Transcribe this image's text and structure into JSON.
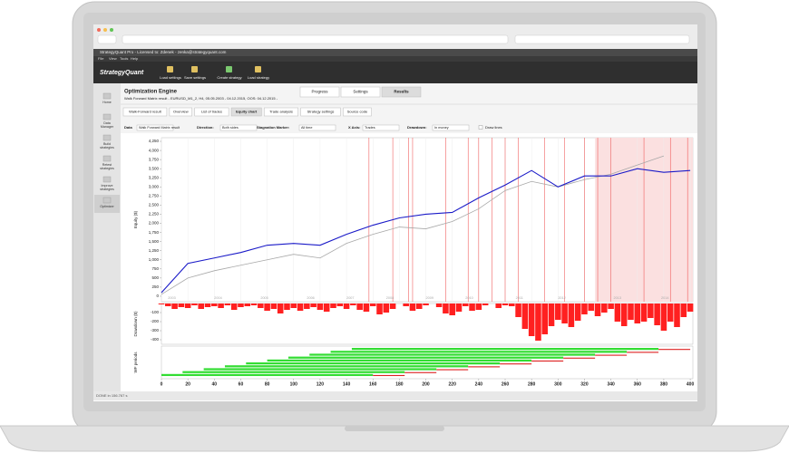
{
  "app": {
    "title": "StrategyQuant Pro - Licensed to: Zdenek - zenka@strategyquant.com",
    "logo": "StrategyQuant",
    "menu": [
      "File",
      "View",
      "Tools",
      "Help"
    ],
    "toolbar": [
      "Load settings",
      "Save settings",
      "Create strategy",
      "Load strategy"
    ],
    "sidebar": [
      "Home",
      "Data Manager",
      "Build strategies",
      "Retest strategies",
      "Improve strategies",
      "Optimizer"
    ],
    "active_sidebar": 5
  },
  "page": {
    "title": "Optimization Engine",
    "subtitle": "Walk Forward Matrix result - EURUSD_M1_2, H4, 05.05.2003 - 04.12.2015, OOS: 04.12.2015 -",
    "tabs": [
      "Progress",
      "Settings",
      "Results"
    ],
    "active_tab": 2,
    "subtabs": [
      "Walk-Forward result",
      "Overview",
      "List of trades",
      "Equity chart",
      "Trade analysis",
      "Strategy settings",
      "Source code"
    ],
    "active_subtab": 3,
    "controls": [
      {
        "label": "Data",
        "value": "Walk Forward Matrix result"
      },
      {
        "label": "Direction:",
        "value": "Both sides"
      },
      {
        "label": "Stagnation Marker:",
        "value": "All time"
      },
      {
        "label": "X Axis:",
        "value": "Trades"
      },
      {
        "label": "Drawdown:",
        "value": "In money"
      }
    ],
    "checkbox": "Draw lines",
    "status": "DONE in 156.767 s"
  },
  "chart_data": [
    {
      "type": "line",
      "ylabel": "Equity ($)",
      "x": [
        0,
        20,
        40,
        60,
        80,
        100,
        120,
        140,
        160,
        180,
        200,
        220,
        240,
        260,
        280,
        300,
        320,
        340,
        360,
        380,
        400
      ],
      "series": [
        {
          "color": "#a8a8a8",
          "values": [
            50,
            500,
            700,
            850,
            1000,
            1150,
            1050,
            1450,
            1700,
            1900,
            1850,
            2050,
            2400,
            2900,
            3150,
            3000,
            3200,
            3350,
            3600,
            3850,
            null
          ]
        },
        {
          "color": "#1a1ac8",
          "values": [
            100,
            900,
            1050,
            1200,
            1400,
            1450,
            1400,
            1700,
            1950,
            2150,
            2250,
            2300,
            2700,
            3050,
            3450,
            3000,
            3300,
            3300,
            3500,
            3400,
            3450
          ]
        }
      ],
      "xlim": [
        0,
        402
      ],
      "ylim": [
        -150,
        4350
      ],
      "yticks": [
        0,
        250,
        500,
        750,
        {
          "value": 1000,
          "label": "1,000"
        },
        {
          "value": 1250,
          "label": "1,250"
        },
        {
          "value": 1500,
          "label": "1,500"
        },
        {
          "value": 1750,
          "label": "1,750"
        },
        {
          "value": 2000,
          "label": "2,000"
        },
        {
          "value": 2250,
          "label": "2,250"
        },
        {
          "value": 2500,
          "label": "2,500"
        },
        {
          "value": 2750,
          "label": "2,750"
        },
        {
          "value": 3000,
          "label": "3,000"
        },
        {
          "value": 3250,
          "label": "3,250"
        },
        {
          "value": 3500,
          "label": "3,500"
        },
        {
          "value": 3750,
          "label": "3,750"
        },
        {
          "value": 4000,
          "label": "4,000"
        },
        {
          "value": 4250,
          "label": "4,250"
        }
      ],
      "year_marks": [
        {
          "value": 5,
          "label": "2003"
        },
        {
          "value": 40,
          "label": "2004"
        },
        {
          "value": 75,
          "label": "2005"
        },
        {
          "value": 110,
          "label": "2006"
        },
        {
          "value": 140,
          "label": "2007"
        },
        {
          "value": 170,
          "label": "2008"
        },
        {
          "value": 200,
          "label": "2009"
        },
        {
          "value": 230,
          "label": "2010"
        },
        {
          "value": 268,
          "label": "2011"
        },
        {
          "value": 300,
          "label": "2012"
        },
        {
          "value": 342,
          "label": "2013"
        },
        {
          "value": 378,
          "label": "2014"
        }
      ],
      "markers": [
        157,
        175,
        187,
        190,
        215,
        232,
        240,
        250,
        260,
        270,
        290,
        305,
        320,
        330,
        340,
        365,
        385,
        398
      ],
      "marker_color": "#ee4444",
      "highlight": [
        328,
        402
      ],
      "highlight_color": "#fbe0e0",
      "grid": true
    },
    {
      "type": "bar",
      "ylabel": "Drawdown ($)",
      "color": "#ff2020",
      "x": [
        0,
        5,
        10,
        15,
        20,
        25,
        30,
        35,
        40,
        45,
        50,
        55,
        60,
        65,
        70,
        75,
        80,
        85,
        90,
        95,
        100,
        105,
        110,
        115,
        120,
        125,
        130,
        135,
        140,
        145,
        150,
        155,
        160,
        165,
        170,
        175,
        180,
        185,
        190,
        195,
        200,
        205,
        210,
        215,
        220,
        225,
        230,
        235,
        240,
        245,
        250,
        255,
        260,
        265,
        270,
        275,
        280,
        285,
        290,
        295,
        300,
        305,
        310,
        315,
        320,
        325,
        330,
        335,
        340,
        345,
        350,
        355,
        360,
        365,
        370,
        375,
        380,
        385,
        390,
        395,
        400
      ],
      "values": [
        -10,
        -30,
        -60,
        -40,
        -50,
        -20,
        -60,
        -40,
        -30,
        -50,
        -20,
        -70,
        -40,
        -30,
        -20,
        -50,
        -80,
        -60,
        -110,
        -70,
        -50,
        -80,
        -60,
        -40,
        -70,
        -90,
        -50,
        -30,
        -60,
        -20,
        -70,
        -90,
        -30,
        -120,
        -100,
        -60,
        0,
        -30,
        -80,
        -60,
        -20,
        0,
        -40,
        -110,
        -130,
        -90,
        -30,
        -80,
        -70,
        -20,
        0,
        -50,
        -20,
        -30,
        -150,
        -280,
        -360,
        -410,
        -340,
        -250,
        -180,
        -220,
        -260,
        -190,
        -120,
        -80,
        -140,
        -100,
        -60,
        -200,
        -250,
        -180,
        -220,
        -200,
        -160,
        -240,
        -300,
        -200,
        -260,
        -150,
        -90
      ],
      "xlim": [
        0,
        402
      ],
      "ylim": [
        -450,
        0
      ],
      "yticks": [
        -100,
        -200,
        -300,
        -400
      ]
    },
    {
      "type": "range",
      "ylabel": "WF periods",
      "in_sample_color": "#33dd33",
      "oos_color": "#dd2222",
      "rows": [
        {
          "start": 0,
          "split": 160,
          "end": 184
        },
        {
          "start": 16,
          "split": 184,
          "end": 208
        },
        {
          "start": 32,
          "split": 208,
          "end": 232
        },
        {
          "start": 48,
          "split": 232,
          "end": 256
        },
        {
          "start": 64,
          "split": 256,
          "end": 280
        },
        {
          "start": 80,
          "split": 280,
          "end": 304
        },
        {
          "start": 96,
          "split": 304,
          "end": 328
        },
        {
          "start": 112,
          "split": 328,
          "end": 352
        },
        {
          "start": 128,
          "split": 352,
          "end": 376
        },
        {
          "start": 144,
          "split": 376,
          "end": 400
        }
      ],
      "xlim": [
        0,
        402
      ],
      "xticks": [
        0,
        20,
        40,
        60,
        80,
        100,
        120,
        140,
        160,
        180,
        200,
        220,
        240,
        260,
        280,
        300,
        320,
        340,
        360,
        380,
        400
      ]
    }
  ]
}
